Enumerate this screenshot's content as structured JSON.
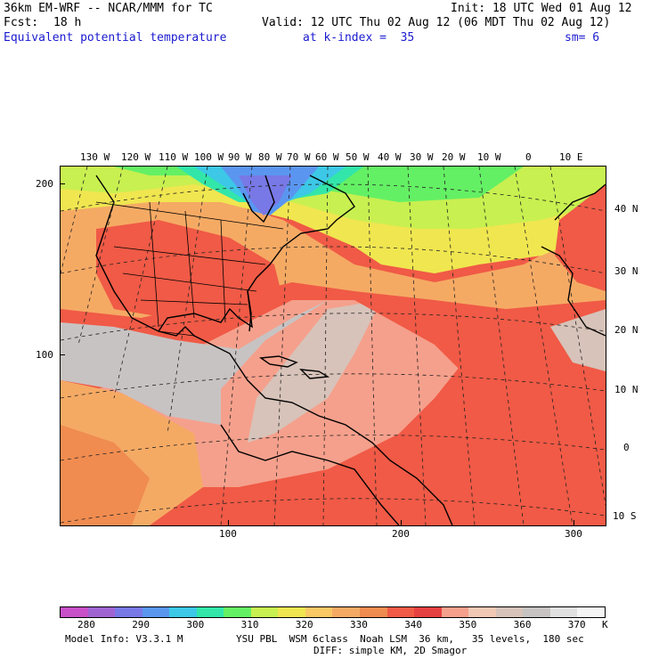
{
  "header": {
    "model_title": "36km EM-WRF -- NCAR/MMM for TC",
    "init": "Init: 18 UTC Wed 01 Aug 12",
    "fcst_label": "Fcst:",
    "fcst_value": "18 h",
    "valid": "Valid: 12 UTC Thu 02 Aug 12 (06 MDT Thu 02 Aug 12)",
    "field": "Equivalent potential temperature",
    "level": "at k-index =  35",
    "smoothing": "sm= 6"
  },
  "map": {
    "longitude_labels": [
      "130 W",
      "120 W",
      "110 W",
      "100 W",
      "90 W",
      "80 W",
      "70 W",
      "60 W",
      "50 W",
      "40 W",
      "30 W",
      "20 W",
      "10 W",
      "0",
      "10 E"
    ],
    "latitude_labels": [
      "40 N",
      "30 N",
      "20 N",
      "10 N",
      "0",
      "10 S"
    ],
    "grid_x_ticks": [
      "100",
      "200",
      "300"
    ],
    "grid_y_ticks": [
      "200",
      "100"
    ]
  },
  "colorbar": {
    "colors": [
      "#c850c8",
      "#a064d2",
      "#7878e6",
      "#5a96f0",
      "#3cc8e6",
      "#32e6aa",
      "#64f064",
      "#c8f050",
      "#f0e650",
      "#fac864",
      "#f5aa64",
      "#f08c50",
      "#f05a46",
      "#e64141",
      "#f5a08c",
      "#f0c8b4",
      "#d7c3b9",
      "#c8c3c3",
      "#e1e1e1",
      "#f5f5f5"
    ],
    "labels": [
      "280",
      "290",
      "300",
      "310",
      "320",
      "330",
      "340",
      "350",
      "360",
      "370"
    ],
    "unit": "K"
  },
  "footer": {
    "model_info": "Model Info: V3.3.1 M",
    "physics": "YSU PBL  WSM 6class  Noah LSM  36 km,   35 levels,  180 sec",
    "diffusion": "DIFF: simple KM, 2D Smagor"
  }
}
